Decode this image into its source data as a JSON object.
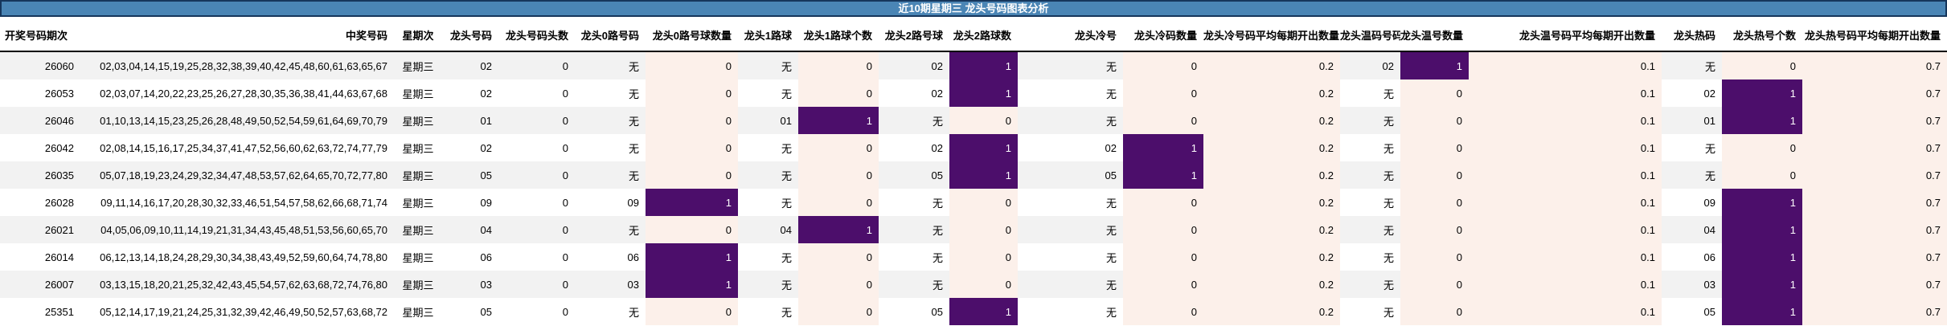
{
  "title": "近10期星期三 龙头号码图表分析",
  "colors": {
    "title_bg": "#4a85b5",
    "title_border": "#16365c",
    "title_text": "#ffffff",
    "row_stripe": "#f2f2f2",
    "heat_high_bg": "#4c0e6b",
    "heat_high_text": "#ffffff",
    "heat_low_bg": "#fcf0ea",
    "header_rule": "#000000"
  },
  "chart_data": {
    "type": "table",
    "title": "近10期星期三 龙头号码图表分析",
    "columns": [
      "开奖号码期次",
      "中奖号码",
      "星期次",
      "龙头号码",
      "龙头号码头数",
      "龙头0路号码",
      "龙头0路号球数量",
      "龙头1路球",
      "龙头1路球个数",
      "龙头2路号球",
      "龙头2路球数",
      "龙头冷号",
      "龙头冷码数量",
      "龙头冷号码平均每期开出数量",
      "龙头温码号码",
      "龙头温号数量",
      "龙头温号码平均每期开出数量",
      "龙头热码",
      "龙头热号个数",
      "龙头热号码平均每期开出数量"
    ],
    "rows": [
      [
        "26060",
        "02,03,04,14,15,19,25,28,32,38,39,40,42,45,48,60,61,63,65,67",
        "星期三",
        "02",
        "0",
        "无",
        "0",
        "无",
        "0",
        "02",
        "1",
        "无",
        "0",
        "0.2",
        "02",
        "1",
        "0.1",
        "无",
        "0",
        "0.7"
      ],
      [
        "26053",
        "02,03,07,14,20,22,23,25,26,27,28,30,35,36,38,41,44,63,67,68",
        "星期三",
        "02",
        "0",
        "无",
        "0",
        "无",
        "0",
        "02",
        "1",
        "无",
        "0",
        "0.2",
        "无",
        "0",
        "0.1",
        "02",
        "1",
        "0.7"
      ],
      [
        "26046",
        "01,10,13,14,15,23,25,26,28,48,49,50,52,54,59,61,64,69,70,79",
        "星期三",
        "01",
        "0",
        "无",
        "0",
        "01",
        "1",
        "无",
        "0",
        "无",
        "0",
        "0.2",
        "无",
        "0",
        "0.1",
        "01",
        "1",
        "0.7"
      ],
      [
        "26042",
        "02,08,14,15,16,17,25,34,37,41,47,52,56,60,62,63,72,74,77,79",
        "星期三",
        "02",
        "0",
        "无",
        "0",
        "无",
        "0",
        "02",
        "1",
        "02",
        "1",
        "0.2",
        "无",
        "0",
        "0.1",
        "无",
        "0",
        "0.7"
      ],
      [
        "26035",
        "05,07,18,19,23,24,29,32,34,47,48,53,57,62,64,65,70,72,77,80",
        "星期三",
        "05",
        "0",
        "无",
        "0",
        "无",
        "0",
        "05",
        "1",
        "05",
        "1",
        "0.2",
        "无",
        "0",
        "0.1",
        "无",
        "0",
        "0.7"
      ],
      [
        "26028",
        "09,11,14,16,17,20,28,30,32,33,46,51,54,57,58,62,66,68,71,74",
        "星期三",
        "09",
        "0",
        "09",
        "1",
        "无",
        "0",
        "无",
        "0",
        "无",
        "0",
        "0.2",
        "无",
        "0",
        "0.1",
        "09",
        "1",
        "0.7"
      ],
      [
        "26021",
        "04,05,06,09,10,11,14,19,21,31,34,43,45,48,51,53,56,60,65,70",
        "星期三",
        "04",
        "0",
        "无",
        "0",
        "04",
        "1",
        "无",
        "0",
        "无",
        "0",
        "0.2",
        "无",
        "0",
        "0.1",
        "04",
        "1",
        "0.7"
      ],
      [
        "26014",
        "06,12,13,14,18,24,28,29,30,34,38,43,49,52,59,60,64,74,78,80",
        "星期三",
        "06",
        "0",
        "06",
        "1",
        "无",
        "0",
        "无",
        "0",
        "无",
        "0",
        "0.2",
        "无",
        "0",
        "0.1",
        "06",
        "1",
        "0.7"
      ],
      [
        "26007",
        "03,13,15,18,20,21,25,32,42,43,45,54,57,62,63,68,72,74,76,80",
        "星期三",
        "03",
        "0",
        "03",
        "1",
        "无",
        "0",
        "无",
        "0",
        "无",
        "0",
        "0.2",
        "无",
        "0",
        "0.1",
        "03",
        "1",
        "0.7"
      ],
      [
        "25351",
        "05,12,14,17,19,21,24,25,31,32,39,42,46,49,50,52,57,63,68,72",
        "星期三",
        "05",
        "0",
        "无",
        "0",
        "无",
        "0",
        "05",
        "1",
        "无",
        "0",
        "0.2",
        "无",
        "0",
        "0.1",
        "05",
        "1",
        "0.7"
      ]
    ],
    "conditional_formatting": {
      "count_columns": [
        "龙头0路号球数量",
        "龙头1路球个数",
        "龙头2路球数",
        "龙头冷码数量",
        "龙头温号数量",
        "龙头热号个数"
      ],
      "value_0_bg": "#fcf0ea",
      "value_1_bg": "#4c0e6b",
      "always_tinted_columns": [
        "龙头冷号码平均每期开出数量",
        "龙头温号码平均每期开出数量",
        "龙头热号码平均每期开出数量"
      ],
      "legend_position": "none",
      "grid": "row-stripes"
    }
  }
}
